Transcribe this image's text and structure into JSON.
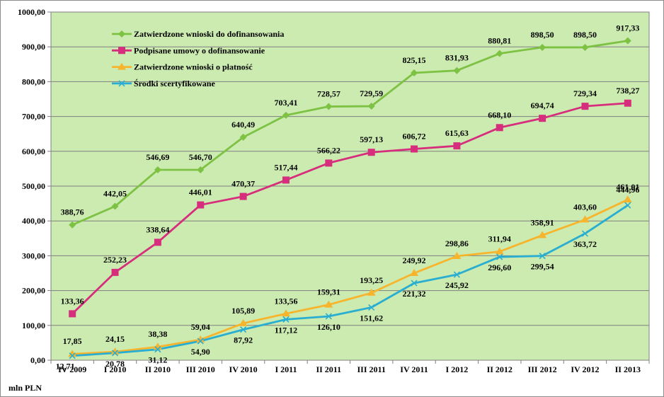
{
  "chart_data": {
    "type": "line",
    "title": "",
    "xlabel": "",
    "ylabel": "",
    "unit_label": "mln PLN",
    "ylim": [
      0,
      1000
    ],
    "ystep": 100,
    "y_tick_labels": [
      "0,00",
      "100,00",
      "200,00",
      "300,00",
      "400,00",
      "500,00",
      "600,00",
      "700,00",
      "800,00",
      "900,00",
      "1000,00"
    ],
    "grid": true,
    "plot_background": "#ccebb0",
    "legend_position": "top-left",
    "categories": [
      "IV 2009",
      "I 2010",
      "II 2010",
      "III 2010",
      "IV 2010",
      "I 2011",
      "II 2011",
      "III 2011",
      "IV 2011",
      "I 2012",
      "II 2012",
      "III 2012",
      "IV 2012",
      "II 2013"
    ],
    "series": [
      {
        "name": "Zatwierdzone wnioski do dofinansowania",
        "color": "#7dc243",
        "marker": "diamond",
        "values": [
          388.76,
          442.05,
          546.69,
          546.7,
          640.49,
          703.41,
          728.57,
          729.59,
          825.15,
          831.93,
          880.81,
          898.5,
          898.5,
          917.33
        ],
        "labels": [
          "388,76",
          "442,05",
          "546,69",
          "546,70",
          "640,49",
          "703,41",
          "728,57",
          "729,59",
          "825,15",
          "831,93",
          "880,81",
          "898,50",
          "898,50",
          "917,33"
        ]
      },
      {
        "name": "Podpisane umowy o dofinansowanie",
        "color": "#d62e7c",
        "marker": "square",
        "values": [
          133.36,
          252.23,
          338.64,
          446.01,
          470.37,
          517.44,
          566.22,
          597.13,
          606.72,
          615.63,
          668.1,
          694.74,
          729.34,
          738.27
        ],
        "labels": [
          "133,36",
          "252,23",
          "338,64",
          "446,01",
          "470,37",
          "517,44",
          "566,22",
          "597,13",
          "606,72",
          "615,63",
          "668,10",
          "694,74",
          "729,34",
          "738,27"
        ]
      },
      {
        "name": "Zatwierdzone wnioski o płatność",
        "color": "#f7b52e",
        "marker": "triangle",
        "values": [
          17.85,
          24.15,
          38.38,
          59.04,
          105.89,
          133.56,
          159.31,
          193.25,
          249.92,
          298.86,
          311.94,
          358.91,
          403.6,
          461.01
        ],
        "labels": [
          "17,85",
          "24,15",
          "38,38",
          "59,04",
          "105,89",
          "133,56",
          "159,31",
          "193,25",
          "249,92",
          "298,86",
          "311,94",
          "358,91",
          "403,60",
          "461,01"
        ]
      },
      {
        "name": "Środki scertyfikowane",
        "color": "#29aed1",
        "marker": "x",
        "values": [
          12.71,
          20.78,
          31.12,
          54.9,
          87.92,
          117.12,
          126.1,
          151.62,
          221.32,
          245.92,
          296.6,
          299.54,
          363.72,
          444.96
        ],
        "labels": [
          "12,71",
          "20,78",
          "31,12",
          "54,90",
          "87,92",
          "117,12",
          "126,10",
          "151,62",
          "221,32",
          "245,92",
          "296,60",
          "299,54",
          "363,72",
          "444,96"
        ]
      }
    ]
  }
}
